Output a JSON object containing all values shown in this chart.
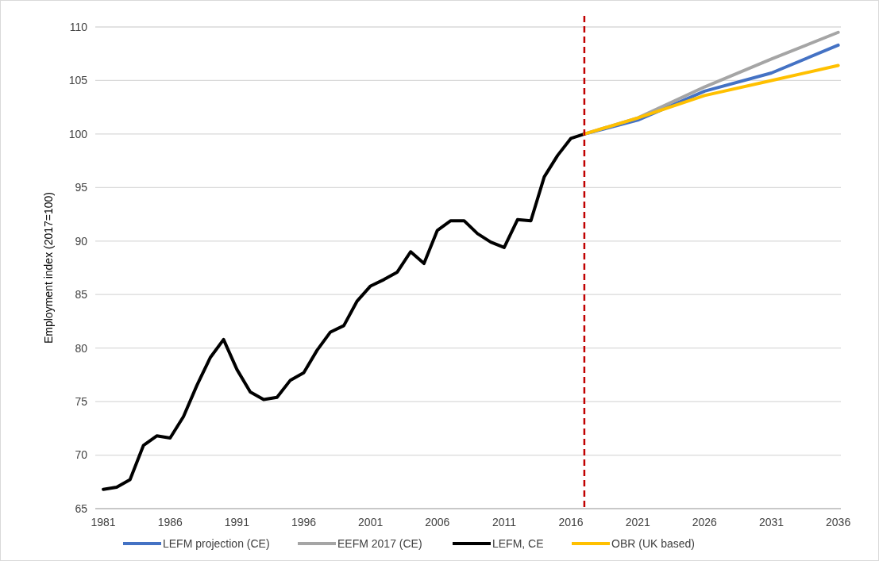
{
  "chart_data": {
    "type": "line",
    "ylabel": "Employment index (2017=100)",
    "xlim": [
      1980.4,
      2036.2
    ],
    "xticks": [
      1981,
      1986,
      1991,
      1996,
      2001,
      2006,
      2011,
      2016,
      2021,
      2026,
      2031,
      2036
    ],
    "ylim": [
      65,
      110
    ],
    "yticks": [
      65,
      70,
      75,
      80,
      85,
      90,
      95,
      100,
      105,
      110
    ],
    "grid": "y",
    "legend": "bottom",
    "line_style": "solid",
    "ref_lines": [
      {
        "axis": "x",
        "value": 2017,
        "color": "#c00000",
        "line_style": "dashed"
      }
    ],
    "series": [
      {
        "name": "LEFM projection (CE)",
        "color": "#4472c4",
        "x": [
          2017,
          2021,
          2026,
          2031,
          2036
        ],
        "values": [
          100,
          101.3,
          104.0,
          105.7,
          108.3
        ]
      },
      {
        "name": "EEFM 2017 (CE)",
        "color": "#a5a5a5",
        "x": [
          2017,
          2021,
          2026,
          2031,
          2036
        ],
        "values": [
          100,
          101.5,
          104.4,
          107.0,
          109.5
        ]
      },
      {
        "name": "LEFM, CE",
        "color": "#000000",
        "x": [
          1981,
          1982,
          1983,
          1984,
          1985,
          1986,
          1987,
          1988,
          1989,
          1990,
          1991,
          1992,
          1993,
          1994,
          1995,
          1996,
          1997,
          1998,
          1999,
          2000,
          2001,
          2002,
          2003,
          2004,
          2005,
          2006,
          2007,
          2008,
          2009,
          2010,
          2011,
          2012,
          2013,
          2014,
          2015,
          2016,
          2017
        ],
        "values": [
          66.8,
          67.0,
          67.7,
          70.9,
          71.8,
          71.6,
          73.6,
          76.5,
          79.1,
          80.8,
          78.0,
          75.9,
          75.2,
          75.4,
          77.0,
          77.7,
          79.8,
          81.5,
          82.1,
          84.4,
          85.8,
          86.4,
          87.1,
          89.0,
          87.9,
          91.0,
          91.9,
          91.9,
          90.7,
          89.9,
          89.4,
          92.0,
          91.9,
          96.0,
          98.0,
          99.6,
          100
        ]
      },
      {
        "name": "OBR (UK based)",
        "color": "#ffc000",
        "x": [
          2017,
          2021,
          2026,
          2031,
          2036
        ],
        "values": [
          100,
          101.5,
          103.6,
          105.0,
          106.4
        ]
      }
    ]
  }
}
